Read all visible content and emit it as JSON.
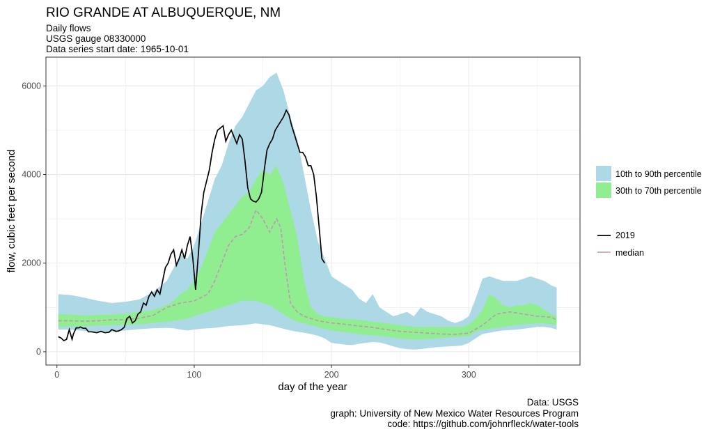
{
  "header": {
    "title": "RIO GRANDE AT ALBUQUERQUE, NM",
    "subtitle_1": "Daily flows",
    "subtitle_2": "USGS gauge  08330000",
    "subtitle_3": "Data series start date:  1965-10-01"
  },
  "caption": {
    "line_1": "Data: USGS",
    "line_2": "graph: University of New Mexico Water Resources Program",
    "line_3": "code: https://github.com/johnrfleck/water-tools"
  },
  "colors": {
    "band_10_90": "#add8e6",
    "band_30_70": "#90ee90",
    "line_2019": "#000000",
    "median": "#c394b6",
    "grid": "#ebebeb"
  },
  "chart_data": {
    "type": "area",
    "xlabel": "day of the year",
    "ylabel": "flow, cubic feet per second",
    "xlim": [
      -8,
      381
    ],
    "ylim": [
      -300,
      6650
    ],
    "xticks": [
      0,
      100,
      200,
      300
    ],
    "yticks": [
      0,
      2000,
      4000,
      6000
    ],
    "grid": true,
    "legend_position": "right",
    "legend_bands": [
      "10th to 90th percentile",
      "30th to 70th percentile"
    ],
    "legend_lines": [
      "2019",
      "median"
    ],
    "p10_p90": {
      "x": [
        1,
        10,
        20,
        30,
        40,
        50,
        60,
        70,
        80,
        85,
        90,
        95,
        100,
        105,
        110,
        115,
        120,
        125,
        130,
        135,
        140,
        145,
        150,
        155,
        160,
        165,
        170,
        175,
        180,
        185,
        190,
        195,
        200,
        205,
        210,
        215,
        220,
        225,
        230,
        235,
        240,
        245,
        250,
        255,
        260,
        265,
        270,
        275,
        280,
        285,
        290,
        295,
        300,
        305,
        310,
        315,
        320,
        325,
        330,
        335,
        340,
        345,
        350,
        355,
        360,
        364
      ],
      "low": [
        500,
        500,
        470,
        450,
        460,
        480,
        510,
        530,
        540,
        530,
        500,
        480,
        500,
        520,
        530,
        540,
        560,
        580,
        590,
        600,
        620,
        640,
        620,
        600,
        560,
        520,
        480,
        450,
        430,
        400,
        360,
        300,
        200,
        180,
        160,
        150,
        180,
        200,
        220,
        210,
        170,
        120,
        80,
        60,
        50,
        60,
        80,
        100,
        110,
        120,
        130,
        140,
        200,
        300,
        400,
        430,
        460,
        480,
        490,
        500,
        520,
        540,
        560,
        560,
        540,
        500
      ],
      "high": [
        1300,
        1280,
        1220,
        1150,
        1100,
        1130,
        1180,
        1350,
        1600,
        1900,
        2200,
        2100,
        2400,
        2900,
        3400,
        3900,
        4200,
        4700,
        5100,
        5300,
        5600,
        5900,
        6000,
        6200,
        6300,
        5900,
        5300,
        4800,
        4000,
        3200,
        2500,
        2100,
        1700,
        1600,
        1500,
        1400,
        1200,
        1100,
        1300,
        1000,
        900,
        800,
        850,
        900,
        800,
        1000,
        900,
        850,
        800,
        700,
        650,
        700,
        800,
        1200,
        1650,
        1700,
        1650,
        1600,
        1600,
        1600,
        1650,
        1700,
        1650,
        1600,
        1500,
        1450
      ]
    },
    "p30_p70": {
      "x": [
        1,
        10,
        20,
        30,
        40,
        50,
        60,
        70,
        80,
        85,
        90,
        95,
        100,
        105,
        110,
        115,
        120,
        125,
        130,
        135,
        140,
        145,
        150,
        155,
        160,
        165,
        170,
        175,
        180,
        185,
        190,
        195,
        200,
        205,
        210,
        215,
        220,
        225,
        230,
        235,
        240,
        245,
        250,
        255,
        260,
        265,
        270,
        275,
        280,
        285,
        290,
        295,
        300,
        305,
        310,
        315,
        320,
        325,
        330,
        335,
        340,
        345,
        350,
        355,
        360,
        364
      ],
      "low": [
        560,
        570,
        580,
        590,
        600,
        610,
        620,
        650,
        680,
        700,
        720,
        750,
        800,
        850,
        900,
        950,
        1000,
        1050,
        1100,
        1150,
        1150,
        1150,
        1100,
        1050,
        950,
        850,
        750,
        680,
        640,
        600,
        560,
        520,
        480,
        460,
        440,
        420,
        400,
        380,
        370,
        360,
        340,
        320,
        300,
        290,
        280,
        280,
        290,
        300,
        310,
        320,
        330,
        340,
        350,
        450,
        500,
        520,
        540,
        560,
        580,
        600,
        620,
        630,
        640,
        640,
        630,
        600
      ],
      "high": [
        850,
        840,
        820,
        830,
        840,
        860,
        900,
        940,
        1050,
        1150,
        1300,
        1400,
        1600,
        1900,
        2300,
        2700,
        2900,
        3100,
        3300,
        3500,
        3600,
        3900,
        4100,
        4000,
        4200,
        3800,
        3200,
        2600,
        1600,
        1000,
        850,
        800,
        780,
        760,
        740,
        730,
        720,
        700,
        680,
        660,
        640,
        620,
        600,
        580,
        560,
        560,
        560,
        560,
        560,
        560,
        560,
        560,
        620,
        750,
        950,
        1300,
        1200,
        1050,
        1000,
        1050,
        1050,
        1100,
        1050,
        950,
        850,
        800
      ]
    },
    "median": {
      "x": [
        1,
        10,
        20,
        30,
        40,
        50,
        60,
        70,
        80,
        90,
        100,
        110,
        115,
        120,
        125,
        130,
        135,
        140,
        145,
        150,
        155,
        160,
        163,
        166,
        170,
        175,
        180,
        190,
        200,
        210,
        220,
        230,
        240,
        250,
        260,
        270,
        280,
        290,
        300,
        310,
        320,
        330,
        340,
        350,
        360,
        364
      ],
      "y": [
        700,
        700,
        690,
        700,
        720,
        720,
        760,
        820,
        1000,
        1100,
        1150,
        1300,
        1600,
        2000,
        2400,
        2600,
        2650,
        2800,
        3200,
        3000,
        2700,
        3000,
        2800,
        2000,
        1100,
        900,
        800,
        700,
        650,
        620,
        580,
        550,
        500,
        460,
        440,
        420,
        400,
        390,
        420,
        600,
        850,
        900,
        850,
        800,
        780,
        720
      ]
    },
    "series_2019": {
      "name": "2019",
      "x": [
        1,
        3,
        5,
        7,
        9,
        11,
        12,
        14,
        16,
        17,
        19,
        21,
        23,
        25,
        27,
        29,
        32,
        35,
        38,
        40,
        43,
        45,
        47,
        49,
        51,
        53,
        55,
        57,
        59,
        61,
        63,
        65,
        67,
        69,
        71,
        73,
        75,
        77,
        79,
        81,
        83,
        85,
        87,
        89,
        91,
        93,
        95,
        97,
        99,
        101,
        103,
        105,
        107,
        109,
        111,
        113,
        115,
        117,
        119,
        121,
        123,
        125,
        127,
        129,
        131,
        133,
        135,
        137,
        139,
        141,
        143,
        145,
        147,
        149,
        151,
        153,
        155,
        157,
        159,
        161,
        163,
        165,
        167,
        169,
        171,
        173,
        175,
        177,
        179,
        181,
        183,
        185,
        187,
        189,
        191,
        193,
        195
      ],
      "y": [
        340,
        310,
        250,
        280,
        500,
        280,
        400,
        540,
        540,
        560,
        530,
        530,
        450,
        450,
        440,
        430,
        460,
        430,
        440,
        500,
        460,
        470,
        500,
        550,
        750,
        800,
        650,
        700,
        850,
        900,
        1100,
        1050,
        1250,
        1350,
        1250,
        1400,
        1300,
        1600,
        1900,
        2000,
        2200,
        2300,
        1950,
        2100,
        2300,
        2100,
        2400,
        2600,
        2100,
        1400,
        2200,
        3100,
        3600,
        3850,
        4100,
        4500,
        4800,
        5000,
        5050,
        5100,
        4750,
        4900,
        5000,
        4850,
        4700,
        4900,
        4800,
        4300,
        3700,
        3450,
        3400,
        3380,
        3450,
        3600,
        4100,
        4550,
        4700,
        4800,
        5000,
        5100,
        5200,
        5300,
        5450,
        5350,
        5100,
        4900,
        4700,
        4500,
        4500,
        4400,
        4200,
        4200,
        4000,
        3500,
        2800,
        2100,
        2000
      ]
    }
  }
}
